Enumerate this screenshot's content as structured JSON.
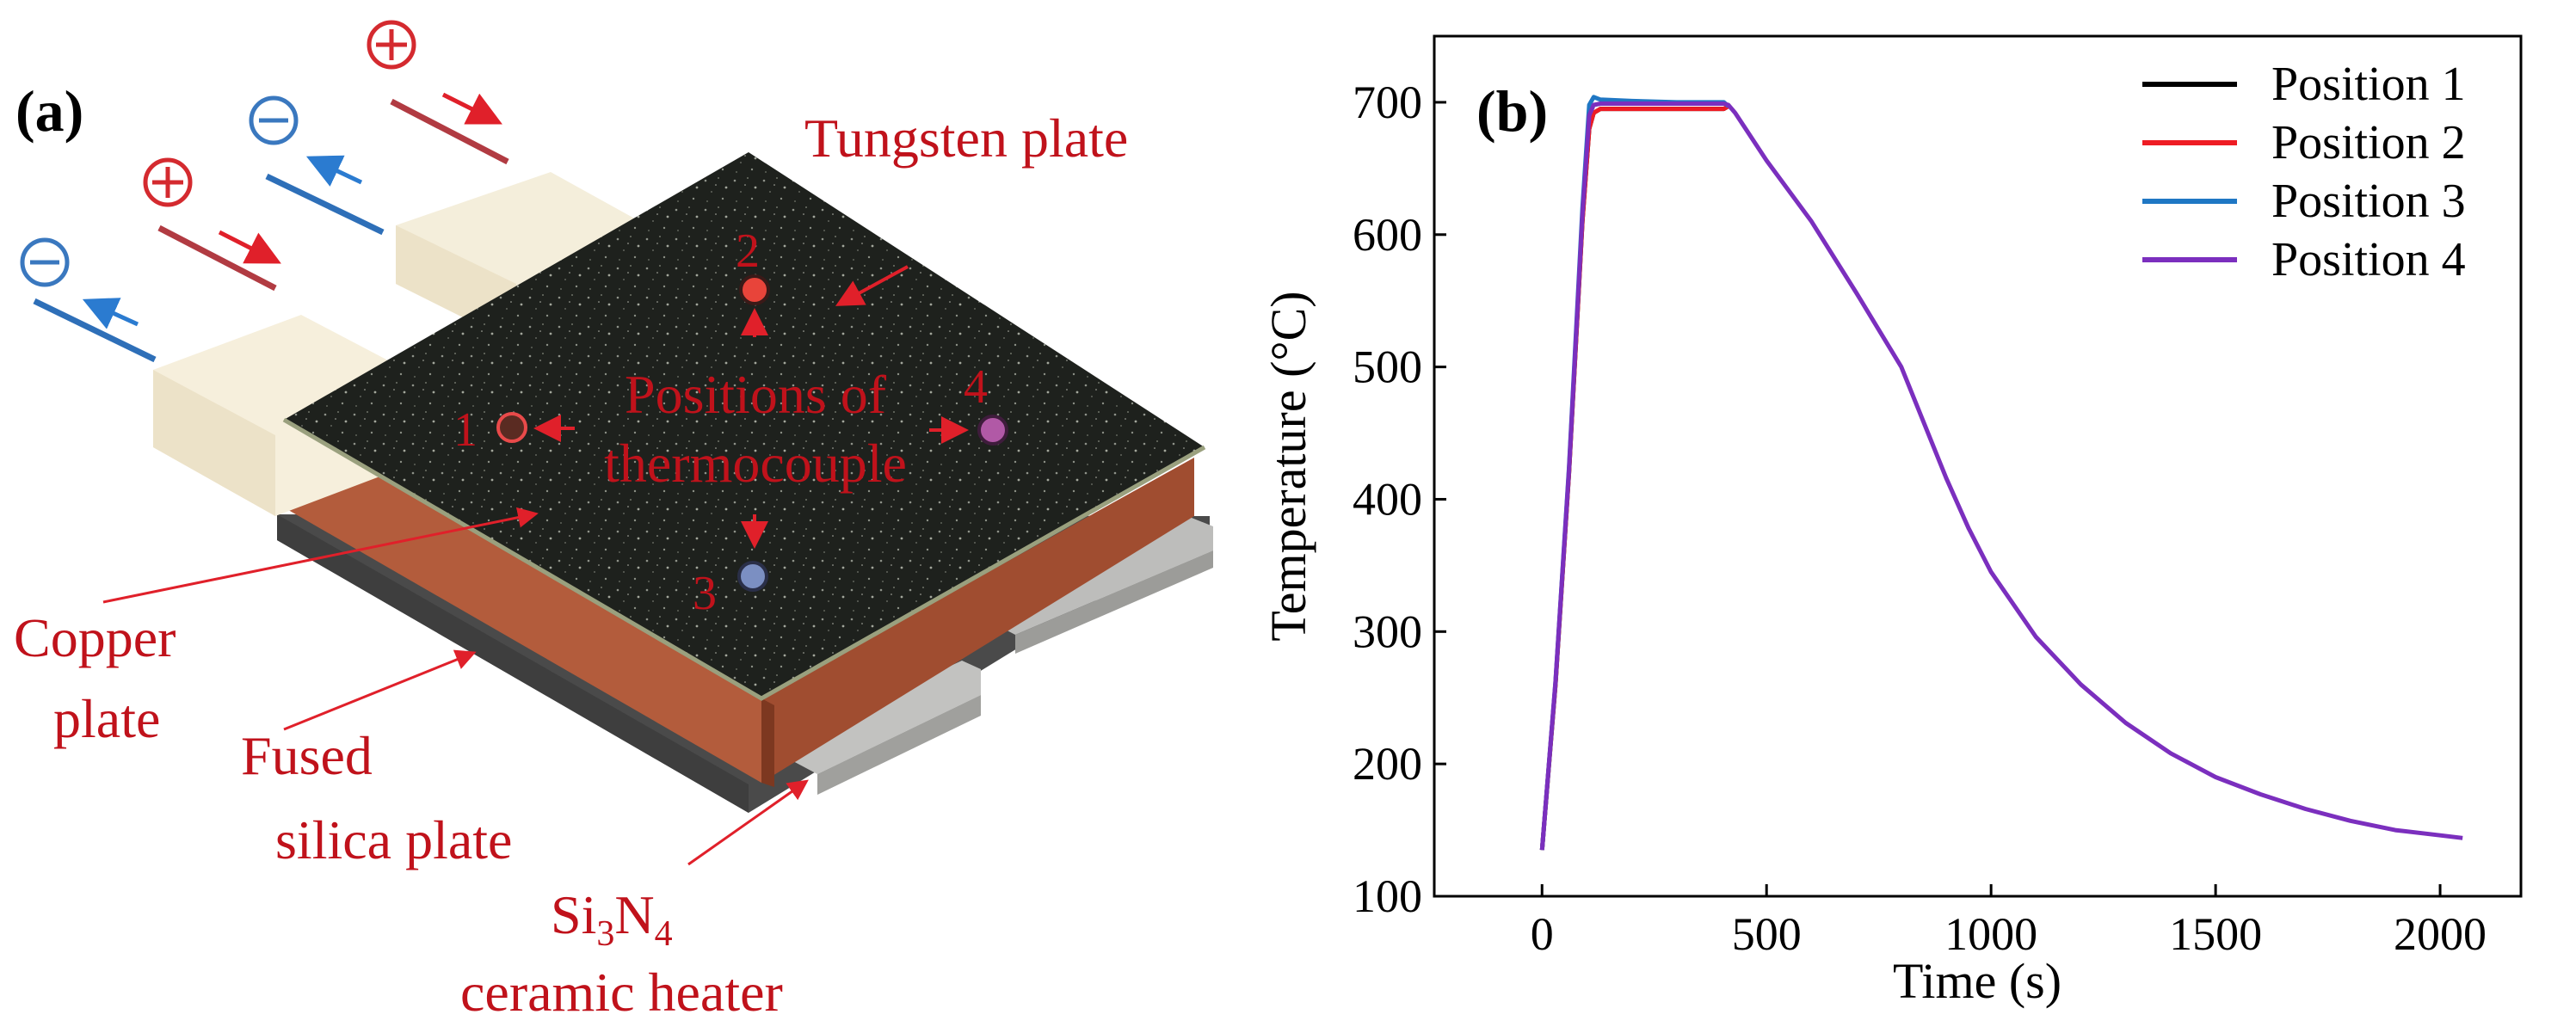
{
  "panel_a": {
    "panel_label": "(a)",
    "labels": {
      "tungsten": "Tungsten plate",
      "positions_line1": "Positions of",
      "positions_line2": "thermocouple",
      "copper_line1": "Copper",
      "copper_line2": "plate",
      "fused_line1": "Fused",
      "fused_line2": "silica plate",
      "heater_si": "Si",
      "heater_sub3": "3",
      "heater_n": "N",
      "heater_sub4": "4",
      "heater_line2": "ceramic heater",
      "pos1": "1",
      "pos2": "2",
      "pos3": "3",
      "pos4": "4"
    },
    "colors": {
      "tungsten": "#1e211d",
      "copper": "#b15a3a",
      "heater": "#b9b9b7",
      "terminal": "#f6efdc",
      "label_red": "#c0121b",
      "plus_red": "#d42a2f",
      "minus_blue": "#3a78bf"
    },
    "icons": [
      "plus-circle-icon",
      "minus-circle-icon"
    ]
  },
  "chart_data": {
    "type": "line",
    "panel_label": "(b)",
    "xlabel": "Time (s)",
    "ylabel": "Temperature (°C)",
    "xlim": [
      -240,
      2180
    ],
    "ylim": [
      100,
      750
    ],
    "xticks": [
      0,
      500,
      1000,
      1500,
      2000
    ],
    "yticks": [
      100,
      200,
      300,
      400,
      500,
      600,
      700
    ],
    "legend_position": "top-right",
    "series": [
      {
        "name": "Position 1",
        "color": "#000000",
        "x": [
          0,
          30,
          60,
          90,
          105,
          115,
          130,
          200,
          300,
          405,
          415
        ],
        "y": [
          135,
          260,
          420,
          610,
          680,
          692,
          695,
          695,
          695,
          695,
          697
        ]
      },
      {
        "name": "Position 2",
        "color": "#ee1c24",
        "x": [
          0,
          30,
          60,
          90,
          105,
          115,
          130,
          200,
          300,
          405,
          415
        ],
        "y": [
          135,
          260,
          420,
          610,
          680,
          692,
          695,
          695,
          695,
          695,
          697
        ]
      },
      {
        "name": "Position 3",
        "color": "#1f77c4",
        "x": [
          0,
          30,
          60,
          90,
          105,
          115,
          130,
          200,
          300,
          405,
          415
        ],
        "y": [
          135,
          262,
          424,
          620,
          698,
          704,
          702,
          701,
          700,
          700,
          697
        ]
      },
      {
        "name": "Position 4",
        "color": "#7b2fbe",
        "x": [
          0,
          30,
          60,
          90,
          105,
          115,
          130,
          200,
          300,
          405,
          415,
          430,
          500,
          600,
          700,
          800,
          850,
          900,
          950,
          1000,
          1100,
          1200,
          1300,
          1400,
          1500,
          1600,
          1700,
          1800,
          1900,
          2000,
          2050
        ],
        "y": [
          135,
          262,
          422,
          615,
          690,
          698,
          699,
          699,
          699,
          699,
          698,
          692,
          656,
          610,
          556,
          500,
          458,
          416,
          378,
          345,
          296,
          260,
          231,
          208,
          190,
          177,
          166,
          157,
          150,
          146,
          144
        ]
      }
    ]
  }
}
